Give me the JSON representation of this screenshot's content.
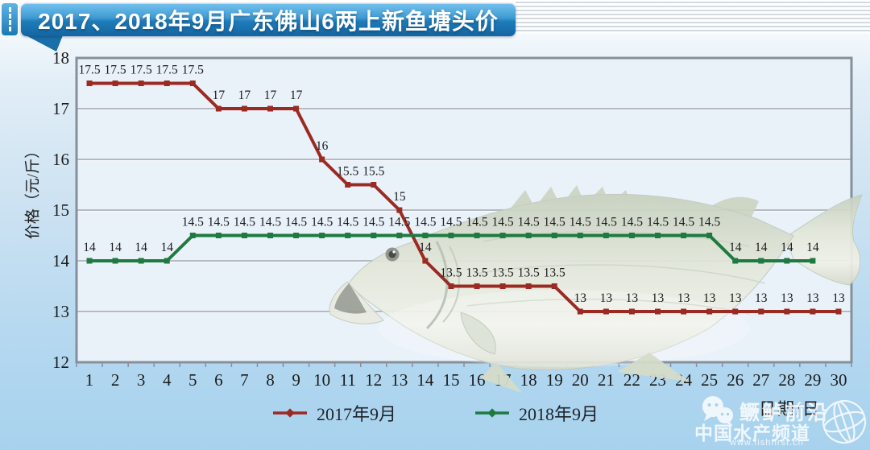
{
  "banner": {
    "title": "2017、2018年9月广东佛山6两上新鱼塘头价"
  },
  "chart_data": {
    "type": "line",
    "title": "2017、2018年9月广东佛山6两上新鱼塘头价",
    "xlabel": "日期/日",
    "ylabel": "价格（元/斤）",
    "x": [
      1,
      2,
      3,
      4,
      5,
      6,
      7,
      8,
      9,
      10,
      11,
      12,
      13,
      14,
      15,
      16,
      17,
      18,
      19,
      20,
      21,
      22,
      23,
      24,
      25,
      26,
      27,
      28,
      29,
      30
    ],
    "ylim": [
      12,
      18
    ],
    "yticks": [
      12,
      13,
      14,
      15,
      16,
      17,
      18
    ],
    "grid": true,
    "legend_position": "bottom",
    "series": [
      {
        "name": "2017年9月",
        "color": "#9b2a23",
        "values": [
          17.5,
          17.5,
          17.5,
          17.5,
          17.5,
          17,
          17,
          17,
          17,
          16,
          15.5,
          15.5,
          15,
          14,
          13.5,
          13.5,
          13.5,
          13.5,
          13.5,
          13,
          13,
          13,
          13,
          13,
          13,
          13,
          13,
          13,
          13,
          13
        ]
      },
      {
        "name": "2018年9月",
        "color": "#1e7a41",
        "values": [
          14,
          14,
          14,
          14,
          14.5,
          14.5,
          14.5,
          14.5,
          14.5,
          14.5,
          14.5,
          14.5,
          14.5,
          14.5,
          14.5,
          14.5,
          14.5,
          14.5,
          14.5,
          14.5,
          14.5,
          14.5,
          14.5,
          14.5,
          14.5,
          14,
          14,
          14,
          14,
          null
        ]
      }
    ]
  },
  "watermark": {
    "line1": "鳜鲈前沿",
    "line2": "中国水产频道",
    "line3": "www.fishfirst.cn",
    "icons": [
      "wechat-icon",
      "globe-icon"
    ]
  }
}
